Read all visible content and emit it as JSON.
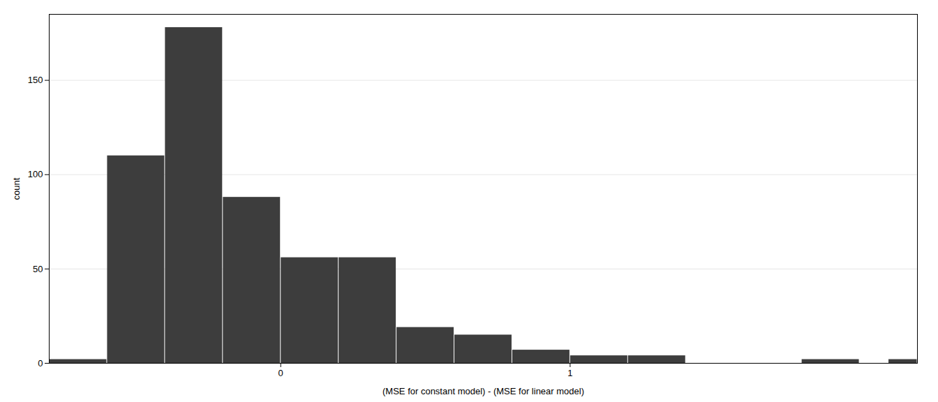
{
  "chart_data": {
    "type": "histogram",
    "xlabel": "(MSE for constant model) - (MSE for linear model)",
    "ylabel": "count",
    "bins": [
      -0.8,
      -0.6,
      -0.4,
      -0.2,
      0.0,
      0.2,
      0.4,
      0.6,
      0.8,
      1.0,
      1.2,
      1.4,
      1.6,
      1.8,
      2.0,
      2.1,
      2.2
    ],
    "values": [
      2,
      110,
      178,
      88,
      56,
      56,
      19,
      15,
      7,
      4,
      4,
      0,
      0,
      2,
      0,
      2
    ],
    "color": "#3D3D3D",
    "xlim": [
      -0.8,
      2.2
    ],
    "ylim": [
      0,
      185
    ],
    "xticks": [
      0,
      1
    ],
    "yticks": [
      0,
      50,
      100,
      150
    ],
    "grid": true
  }
}
